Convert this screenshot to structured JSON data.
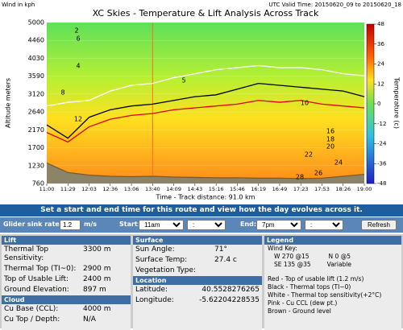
{
  "header": {
    "wind_units": "Wind in kph",
    "valid_time": "UTC Valid Time: 20150620_09 to 20150620_18"
  },
  "chart_data": {
    "type": "line",
    "title": "XC Skies - Temperature & Lift Analysis Across Track",
    "x_label": "Time - Track distance: 91.0 km",
    "y_label": "Altitude meters",
    "categories": [
      "11:00",
      "11:29",
      "12:03",
      "12:36",
      "13:06",
      "13:40",
      "14:09",
      "14:43",
      "15:16",
      "15:46",
      "16:19",
      "16:49",
      "17:23",
      "17:53",
      "18:26",
      "19:00"
    ],
    "ylim": [
      760,
      5000
    ],
    "yticks": [
      760,
      1230,
      1700,
      2170,
      2640,
      3120,
      3590,
      4030,
      4460,
      5000
    ],
    "series": [
      {
        "color": "#ffffff",
        "values": [
          2800,
          2900,
          2950,
          3200,
          3350,
          3400,
          3550,
          3650,
          3750,
          3800,
          3850,
          3800,
          3800,
          3750,
          3650,
          3600
        ]
      },
      {
        "color": "#000000",
        "values": [
          2300,
          1950,
          2500,
          2700,
          2800,
          2850,
          2950,
          3050,
          3100,
          3250,
          3400,
          3350,
          3300,
          3250,
          3200,
          3050
        ]
      },
      {
        "color": "#e00000",
        "values": [
          2100,
          1850,
          2250,
          2450,
          2550,
          2600,
          2700,
          2750,
          2800,
          2850,
          2950,
          2900,
          2950,
          2850,
          2800,
          2750
        ]
      },
      {
        "color": "#7a5a2a",
        "values": [
          1300,
          1050,
          980,
          950,
          940,
          950,
          930,
          920,
          910,
          910,
          900,
          900,
          890,
          900,
          950,
          1000
        ]
      }
    ],
    "isotherm_labels": [
      2,
      6,
      4,
      8,
      12,
      5,
      10,
      16,
      18,
      20,
      22,
      24,
      26,
      28
    ],
    "colorbar": {
      "label": "Temperature (c)",
      "lim": [
        -48,
        48
      ],
      "ticks": [
        48,
        36,
        24,
        12,
        0,
        -12,
        -24,
        -36,
        -48
      ]
    }
  },
  "banner": "Set a start and end time for this route and view how the day evolves across it.",
  "controls": {
    "sink_label": "Glider sink rate:",
    "sink_value": "1.2",
    "sink_unit": "m/s",
    "start_label": "Start:",
    "start_hour": "11am",
    "start_minute": ":",
    "end_label": "End:",
    "end_hour": "7pm",
    "end_minute": ":",
    "refresh": "Refresh"
  },
  "lift": {
    "title": "Lift",
    "rows": [
      [
        "Thermal Top Sensitivity:",
        "3300 m"
      ],
      [
        "Thermal Top (TI~0):",
        "2900 m"
      ],
      [
        "Top of Usable Lift:",
        "2400 m"
      ],
      [
        "Ground Elevation:",
        "897 m"
      ]
    ]
  },
  "cloud": {
    "title": "Cloud",
    "rows": [
      [
        "Cu Base (CCL):",
        "4000 m"
      ],
      [
        "Cu Top / Depth:",
        "N/A"
      ]
    ]
  },
  "surface": {
    "title": "Surface",
    "rows": [
      [
        "Sun Angle:",
        "71°"
      ],
      [
        "Surface Temp:",
        "27.4 c"
      ],
      [
        "Vegetation Type:",
        ""
      ]
    ]
  },
  "location": {
    "title": "Location",
    "rows": [
      [
        "Latitude:",
        "40.5528276265"
      ],
      [
        "Longitude:",
        "-5.62204228535"
      ]
    ]
  },
  "legend": {
    "title": "Legend",
    "wind_key": "Wind Key:",
    "w": "W 270 @15",
    "n": "N 0 @5",
    "se": "SE 135 @35",
    "variable": "Variable",
    "lines": [
      "Red - Top of usable lift (1.2 m/s)",
      "Black - Thermal tops (TI~0)",
      "White - Thermal top sensitivity(+2°C)",
      "Pink - Cu CCL (dew pt.)",
      "Brown - Ground level"
    ]
  }
}
